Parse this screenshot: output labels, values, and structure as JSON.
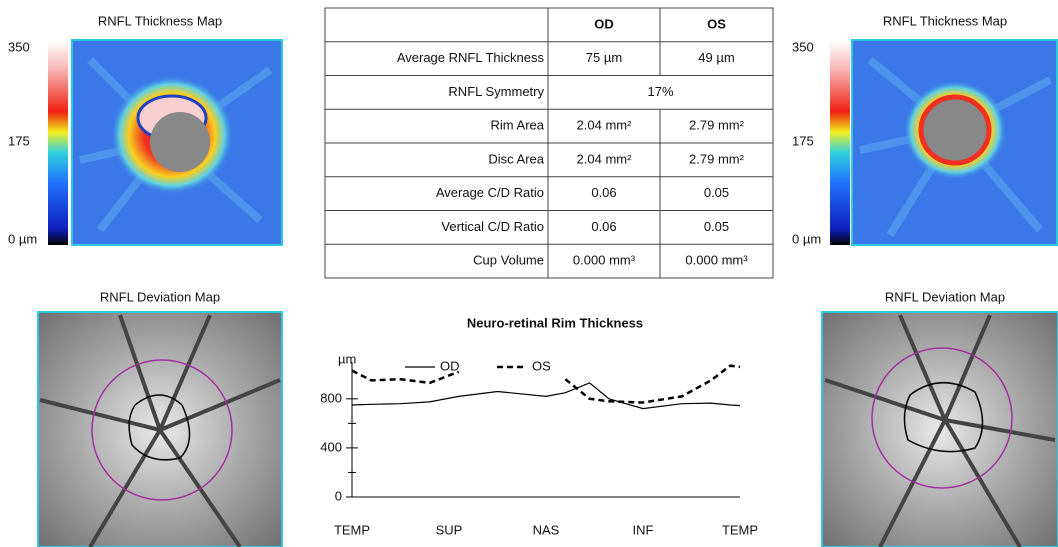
{
  "left_panel": {
    "thickness_title": "RNFL Thickness Map",
    "scale_labels": [
      "350",
      "175",
      "0 µm"
    ],
    "deviation_title": "RNFL Deviation Map"
  },
  "right_panel": {
    "thickness_title": "RNFL Thickness Map",
    "scale_labels": [
      "350",
      "175",
      "0 µm"
    ],
    "deviation_title": "RNFL Deviation Map"
  },
  "table": {
    "columns": [
      "OD",
      "OS"
    ],
    "rows": [
      [
        "Average RNFL Thickness",
        "75 µm",
        "49 µm"
      ],
      [
        "RNFL Symmetry",
        "17%"
      ],
      [
        "Rim Area",
        "2.04 mm²",
        "2.79 mm²"
      ],
      [
        "Disc Area",
        "2.04 mm²",
        "2.79 mm²"
      ],
      [
        "Average C/D Ratio",
        "0.06",
        "0.05"
      ],
      [
        "Vertical C/D Ratio",
        "0.06",
        "0.05"
      ],
      [
        "Cup Volume",
        "0.000 mm³",
        "0.000 mm³"
      ]
    ]
  },
  "chart_data": {
    "type": "line",
    "title": "Neuro-retinal Rim Thickness",
    "y_label": "µm",
    "x": [
      0,
      0.2,
      0.5,
      0.8,
      1.1,
      1.5,
      2,
      2.2,
      2.45,
      2.65,
      3,
      3.4,
      3.7,
      3.9,
      4
    ],
    "xlim": [
      0,
      4
    ],
    "xticks": [
      {
        "value": 0,
        "label": "TEMP"
      },
      {
        "value": 1,
        "label": "SUP"
      },
      {
        "value": 2,
        "label": "NAS"
      },
      {
        "value": 3,
        "label": "INF"
      },
      {
        "value": 4,
        "label": "TEMP"
      }
    ],
    "ylim": [
      0,
      1100
    ],
    "yticks": [
      0,
      400,
      800
    ],
    "yminorticks": [
      200,
      600
    ],
    "series": [
      {
        "name": "OD",
        "color": "#000000",
        "dashed": false,
        "values": [
          750,
          755,
          760,
          775,
          820,
          860,
          820,
          850,
          930,
          800,
          720,
          760,
          765,
          750,
          745
        ]
      },
      {
        "name": "OS",
        "color": "#000000",
        "dashed": true,
        "values": [
          1030,
          950,
          960,
          930,
          1020,
          null,
          null,
          960,
          800,
          780,
          770,
          820,
          950,
          1070,
          1060
        ]
      }
    ]
  }
}
